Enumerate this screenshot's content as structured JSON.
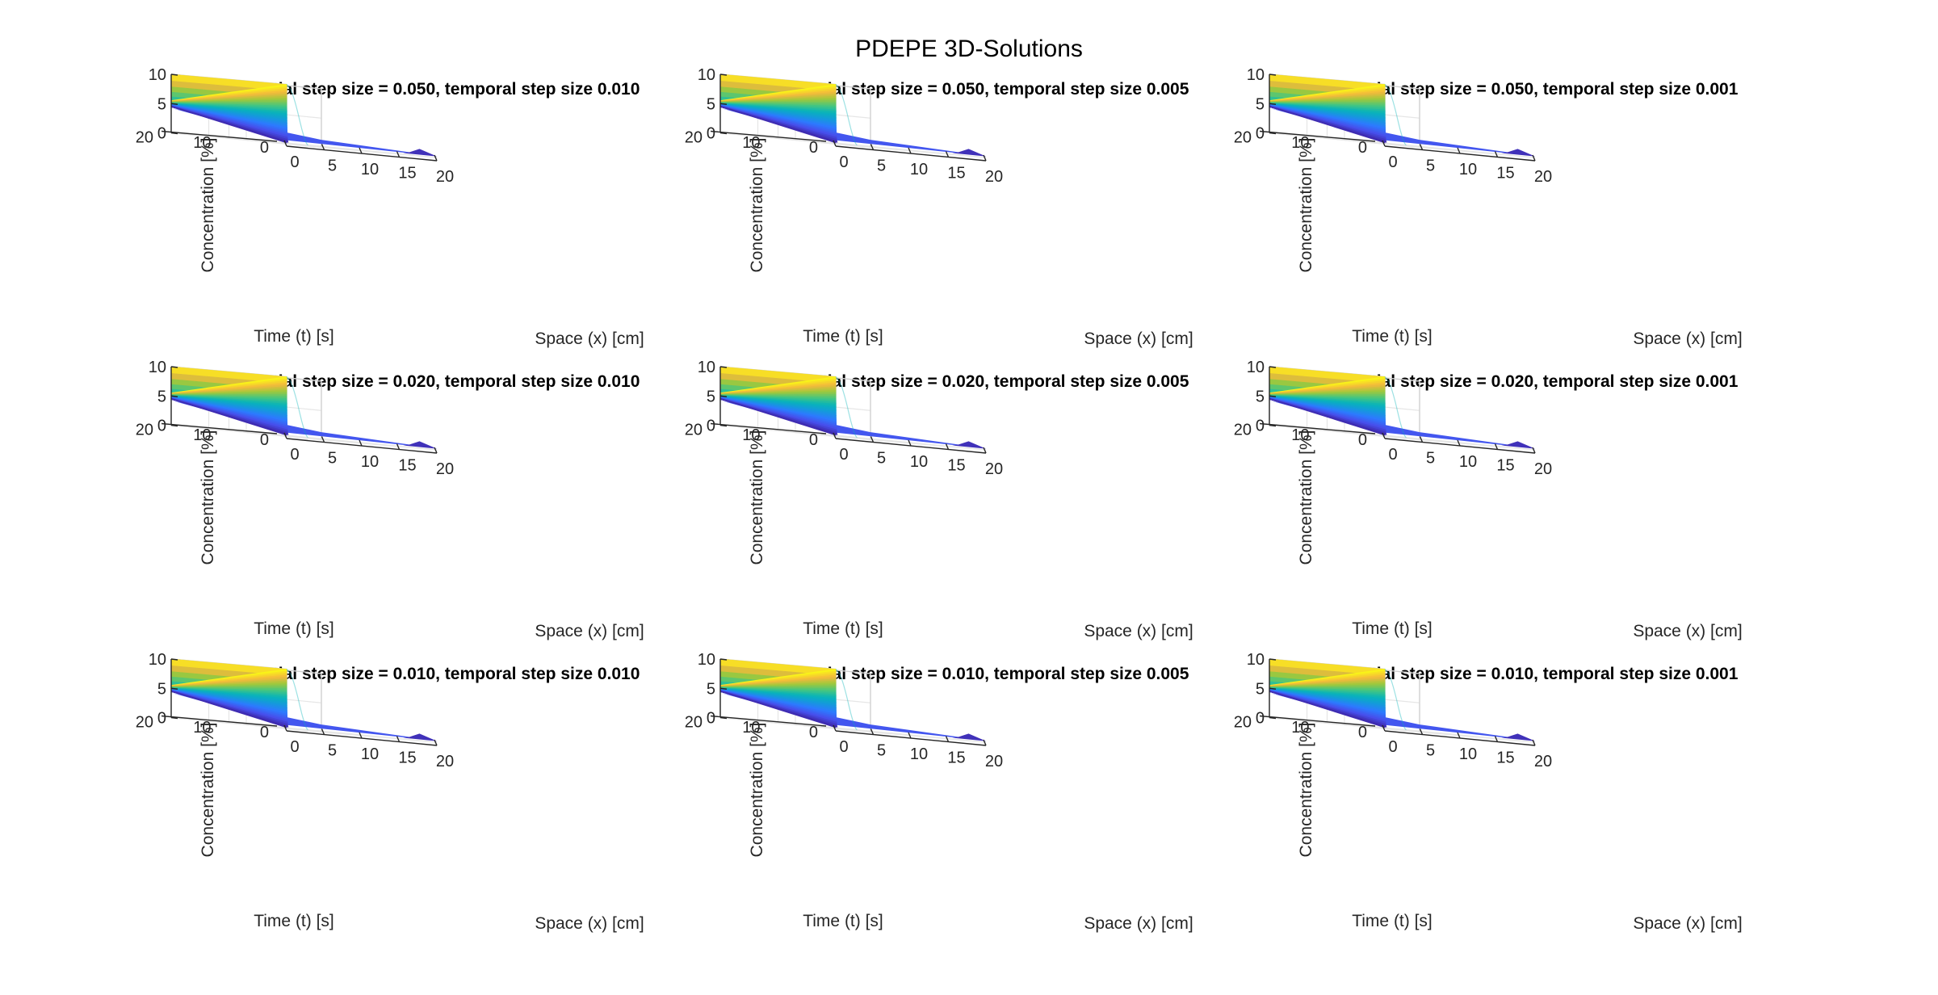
{
  "figure": {
    "suptitle": "PDEPE 3D-Solutions"
  },
  "chart_data": [
    {
      "type": "surface",
      "title": "spatial step size = 0.050, temporal step size 0.010",
      "xlabel": "Space (x) [cm]",
      "ylabel": "Time (t) [s]",
      "zlabel": "Concentration [%]",
      "xlim": [
        0,
        20
      ],
      "ylim": [
        0,
        20
      ],
      "zlim": [
        0,
        10
      ],
      "xticks": [
        "0",
        "5",
        "10",
        "15",
        "20"
      ],
      "yticks": [
        "0",
        "10",
        "20"
      ],
      "zticks": [
        "0",
        "5",
        "10"
      ],
      "grid": true,
      "colormap": "parula",
      "surface": {
        "boundary_x0_value": 10,
        "initial_value": 0
      }
    },
    {
      "type": "surface",
      "title": "spatial step size = 0.050, temporal step size 0.005",
      "xlabel": "Space (x) [cm]",
      "ylabel": "Time (t) [s]",
      "zlabel": "Concentration [%]",
      "xlim": [
        0,
        20
      ],
      "ylim": [
        0,
        20
      ],
      "zlim": [
        0,
        10
      ],
      "xticks": [
        "0",
        "5",
        "10",
        "15",
        "20"
      ],
      "yticks": [
        "0",
        "10",
        "20"
      ],
      "zticks": [
        "0",
        "5",
        "10"
      ],
      "grid": true,
      "colormap": "parula",
      "surface": {
        "boundary_x0_value": 10,
        "initial_value": 0
      }
    },
    {
      "type": "surface",
      "title": "spatial step size = 0.050, temporal step size 0.001",
      "xlabel": "Space (x) [cm]",
      "ylabel": "Time (t) [s]",
      "zlabel": "Concentration [%]",
      "xlim": [
        0,
        20
      ],
      "ylim": [
        0,
        20
      ],
      "zlim": [
        0,
        10
      ],
      "xticks": [
        "0",
        "5",
        "10",
        "15",
        "20"
      ],
      "yticks": [
        "0",
        "10",
        "20"
      ],
      "zticks": [
        "0",
        "5",
        "10"
      ],
      "grid": true,
      "colormap": "parula",
      "surface": {
        "boundary_x0_value": 10,
        "initial_value": 0
      }
    },
    {
      "type": "surface",
      "title": "spatial step size = 0.020, temporal step size 0.010",
      "xlabel": "Space (x) [cm]",
      "ylabel": "Time (t) [s]",
      "zlabel": "Concentration [%]",
      "xlim": [
        0,
        20
      ],
      "ylim": [
        0,
        20
      ],
      "zlim": [
        0,
        10
      ],
      "xticks": [
        "0",
        "5",
        "10",
        "15",
        "20"
      ],
      "yticks": [
        "0",
        "10",
        "20"
      ],
      "zticks": [
        "0",
        "5",
        "10"
      ],
      "grid": true,
      "colormap": "parula",
      "surface": {
        "boundary_x0_value": 10,
        "initial_value": 0
      }
    },
    {
      "type": "surface",
      "title": "spatial step size = 0.020, temporal step size 0.005",
      "xlabel": "Space (x) [cm]",
      "ylabel": "Time (t) [s]",
      "zlabel": "Concentration [%]",
      "xlim": [
        0,
        20
      ],
      "ylim": [
        0,
        20
      ],
      "zlim": [
        0,
        10
      ],
      "xticks": [
        "0",
        "5",
        "10",
        "15",
        "20"
      ],
      "yticks": [
        "0",
        "10",
        "20"
      ],
      "zticks": [
        "0",
        "5",
        "10"
      ],
      "grid": true,
      "colormap": "parula",
      "surface": {
        "boundary_x0_value": 10,
        "initial_value": 0
      }
    },
    {
      "type": "surface",
      "title": "spatial step size = 0.020, temporal step size 0.001",
      "xlabel": "Space (x) [cm]",
      "ylabel": "Time (t) [s]",
      "zlabel": "Concentration [%]",
      "xlim": [
        0,
        20
      ],
      "ylim": [
        0,
        20
      ],
      "zlim": [
        0,
        10
      ],
      "xticks": [
        "0",
        "5",
        "10",
        "15",
        "20"
      ],
      "yticks": [
        "0",
        "10",
        "20"
      ],
      "zticks": [
        "0",
        "5",
        "10"
      ],
      "grid": true,
      "colormap": "parula",
      "surface": {
        "boundary_x0_value": 10,
        "initial_value": 0
      }
    },
    {
      "type": "surface",
      "title": "spatial step size = 0.010, temporal step size 0.010",
      "xlabel": "Space (x) [cm]",
      "ylabel": "Time (t) [s]",
      "zlabel": "Concentration [%]",
      "xlim": [
        0,
        20
      ],
      "ylim": [
        0,
        20
      ],
      "zlim": [
        0,
        10
      ],
      "xticks": [
        "0",
        "5",
        "10",
        "15",
        "20"
      ],
      "yticks": [
        "0",
        "10",
        "20"
      ],
      "zticks": [
        "0",
        "5",
        "10"
      ],
      "grid": true,
      "colormap": "parula",
      "surface": {
        "boundary_x0_value": 10,
        "initial_value": 0
      }
    },
    {
      "type": "surface",
      "title": "spatial step size = 0.010, temporal step size 0.005",
      "xlabel": "Space (x) [cm]",
      "ylabel": "Time (t) [s]",
      "zlabel": "Concentration [%]",
      "xlim": [
        0,
        20
      ],
      "ylim": [
        0,
        20
      ],
      "zlim": [
        0,
        10
      ],
      "xticks": [
        "0",
        "5",
        "10",
        "15",
        "20"
      ],
      "yticks": [
        "0",
        "10",
        "20"
      ],
      "zticks": [
        "0",
        "5",
        "10"
      ],
      "grid": true,
      "colormap": "parula",
      "surface": {
        "boundary_x0_value": 10,
        "initial_value": 0
      }
    },
    {
      "type": "surface",
      "title": "spatial step size = 0.010, temporal step size 0.001",
      "xlabel": "Space (x) [cm]",
      "ylabel": "Time (t) [s]",
      "zlabel": "Concentration [%]",
      "xlim": [
        0,
        20
      ],
      "ylim": [
        0,
        20
      ],
      "zlim": [
        0,
        10
      ],
      "xticks": [
        "0",
        "5",
        "10",
        "15",
        "20"
      ],
      "yticks": [
        "0",
        "10",
        "20"
      ],
      "zticks": [
        "0",
        "5",
        "10"
      ],
      "grid": true,
      "colormap": "parula",
      "surface": {
        "boundary_x0_value": 10,
        "initial_value": 0
      }
    }
  ]
}
